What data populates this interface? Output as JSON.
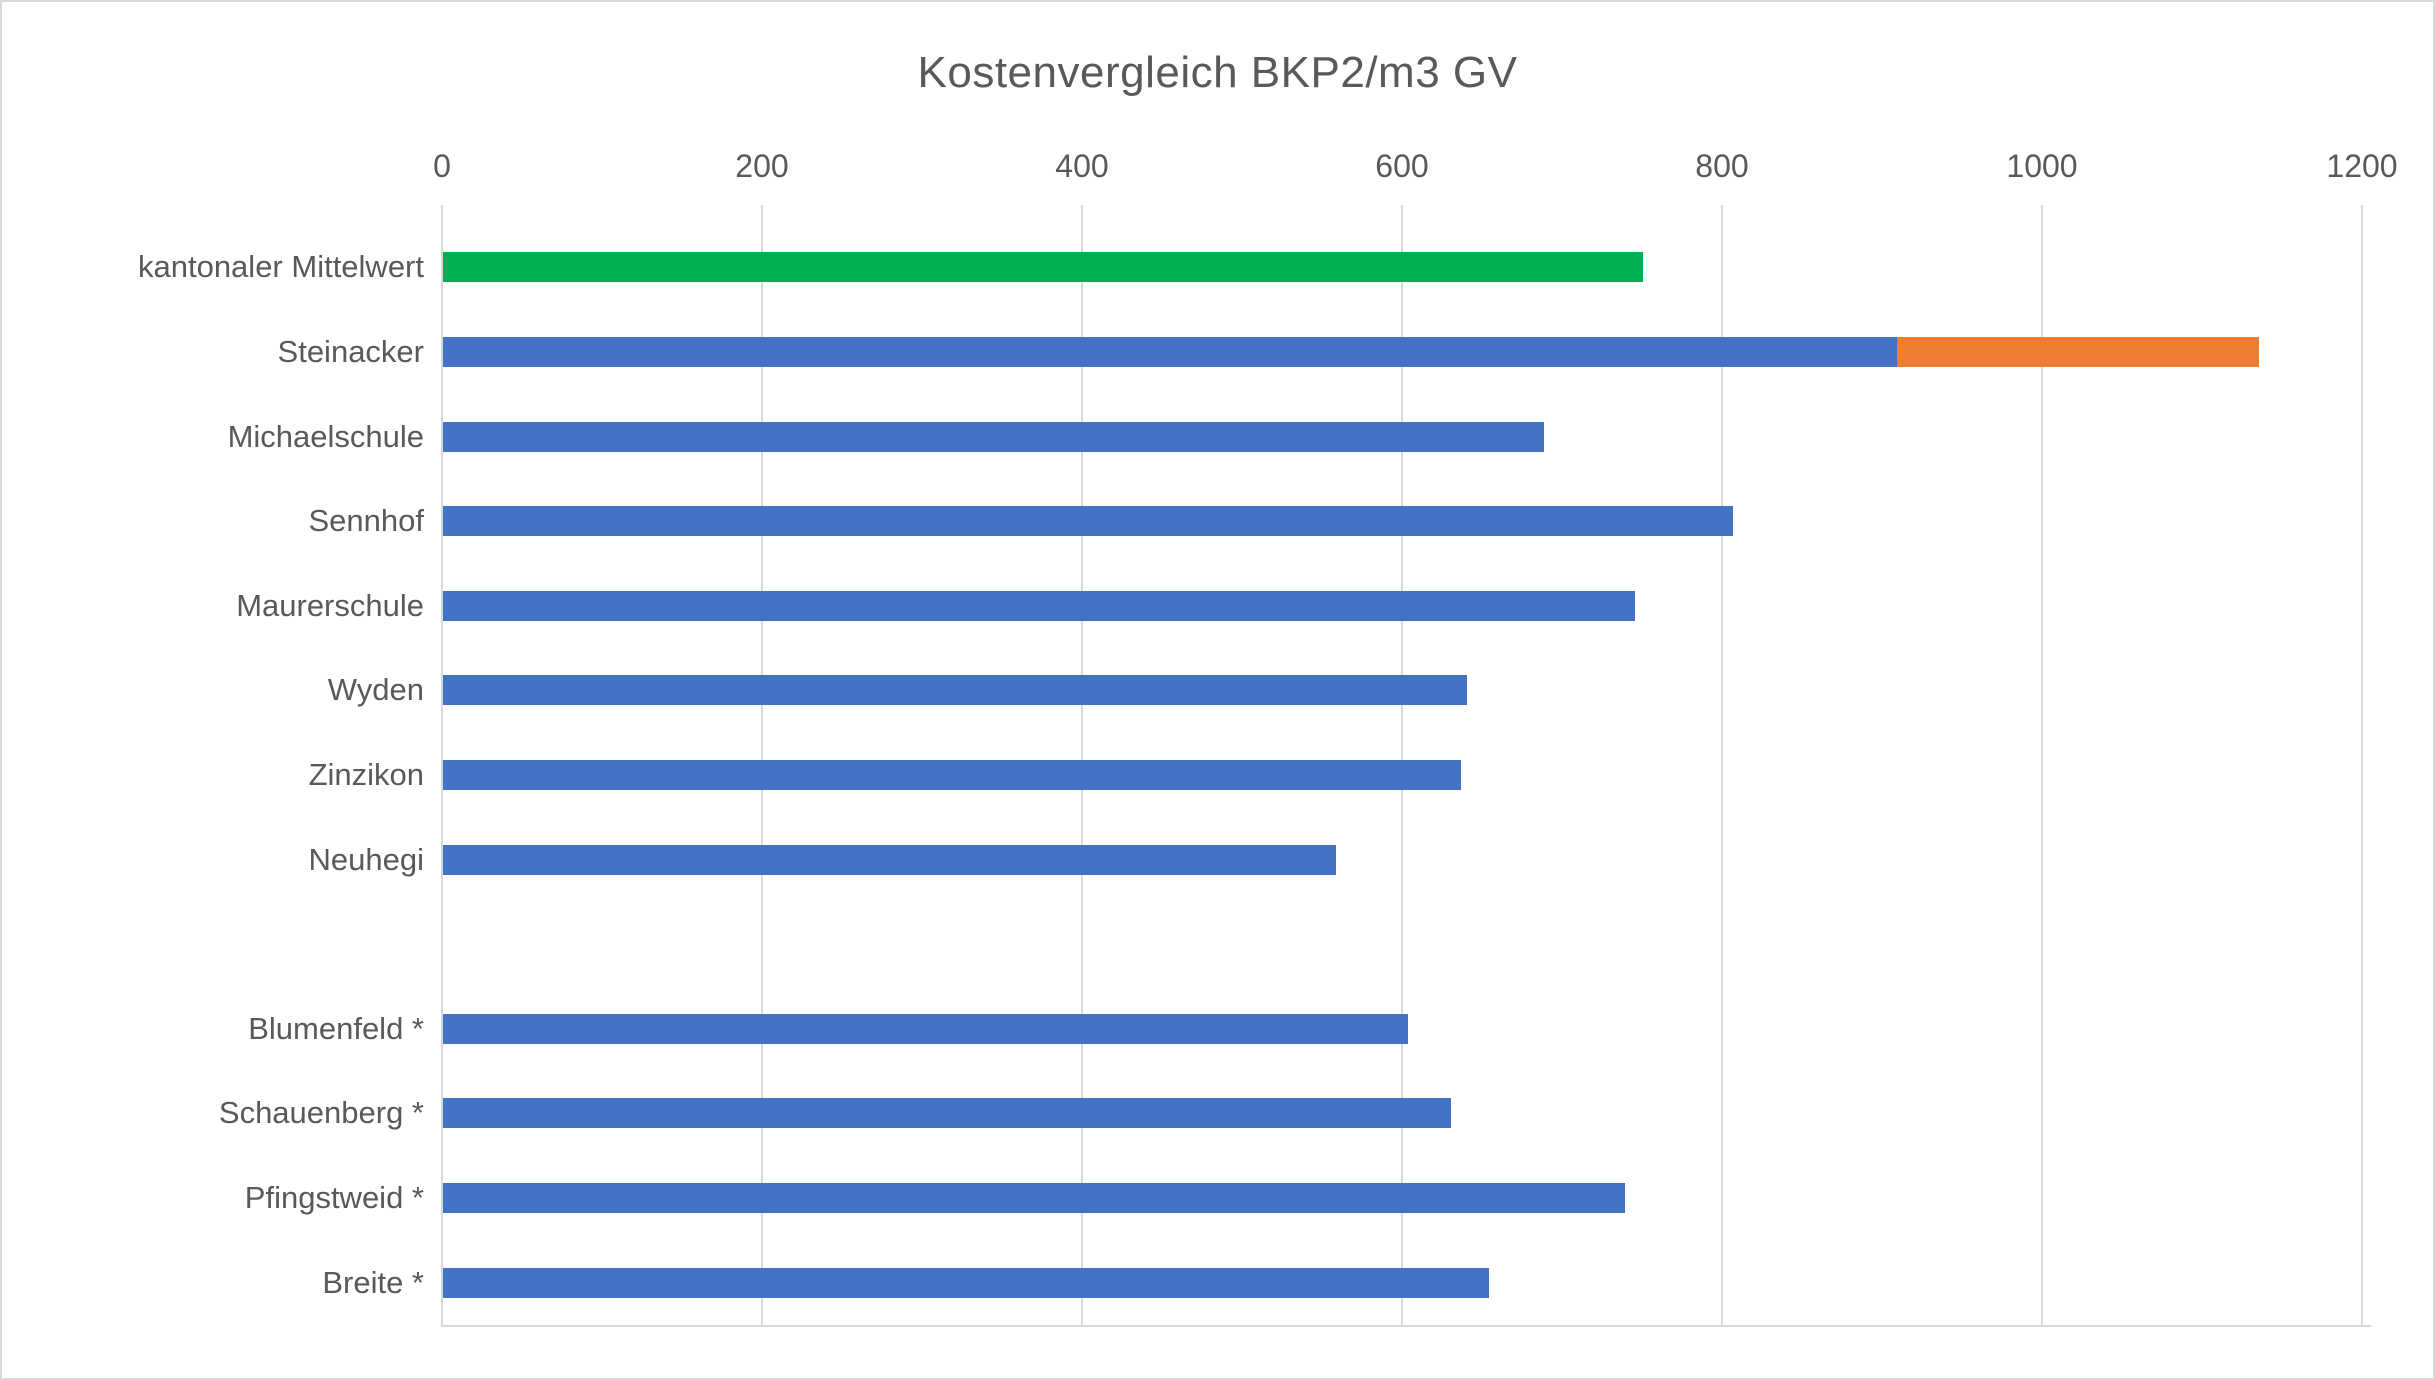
{
  "chart_data": {
    "type": "bar",
    "orientation": "horizontal",
    "title": "Kostenvergleich BKP2/m3 GV",
    "legend": "none",
    "x_axis": {
      "position": "top",
      "range": [
        0,
        1200
      ],
      "ticks": [
        0,
        200,
        400,
        600,
        800,
        1000,
        1200
      ],
      "grid": true
    },
    "colors": {
      "default_bar": "#4472C4",
      "highlight_bar": "#ED7D31",
      "mean_bar": "#00B050",
      "gridline": "#D9D9D9",
      "text": "#595959"
    },
    "rows": [
      {
        "label": "kantonaler Mittelwert",
        "segments": [
          {
            "value": 750,
            "color_key": "mean_bar"
          }
        ]
      },
      {
        "label": "Steinacker",
        "segments": [
          {
            "value": 909,
            "color_key": "default_bar"
          },
          {
            "value": 226,
            "color_key": "highlight_bar"
          }
        ]
      },
      {
        "label": "Michaelschule",
        "segments": [
          {
            "value": 688,
            "color_key": "default_bar"
          }
        ]
      },
      {
        "label": "Sennhof",
        "segments": [
          {
            "value": 806,
            "color_key": "default_bar"
          }
        ]
      },
      {
        "label": "Maurerschule",
        "segments": [
          {
            "value": 745,
            "color_key": "default_bar"
          }
        ]
      },
      {
        "label": "Wyden",
        "segments": [
          {
            "value": 640,
            "color_key": "default_bar"
          }
        ]
      },
      {
        "label": "Zinzikon",
        "segments": [
          {
            "value": 636,
            "color_key": "default_bar"
          }
        ]
      },
      {
        "label": "Neuhegi",
        "segments": [
          {
            "value": 558,
            "color_key": "default_bar"
          }
        ]
      },
      {
        "label": "",
        "segments": []
      },
      {
        "label": "Blumenfeld *",
        "segments": [
          {
            "value": 603,
            "color_key": "default_bar"
          }
        ]
      },
      {
        "label": "Schauenberg *",
        "segments": [
          {
            "value": 630,
            "color_key": "default_bar"
          }
        ]
      },
      {
        "label": "Pfingstweid *",
        "segments": [
          {
            "value": 739,
            "color_key": "default_bar"
          }
        ]
      },
      {
        "label": "Breite *",
        "segments": [
          {
            "value": 654,
            "color_key": "default_bar"
          }
        ]
      }
    ]
  }
}
